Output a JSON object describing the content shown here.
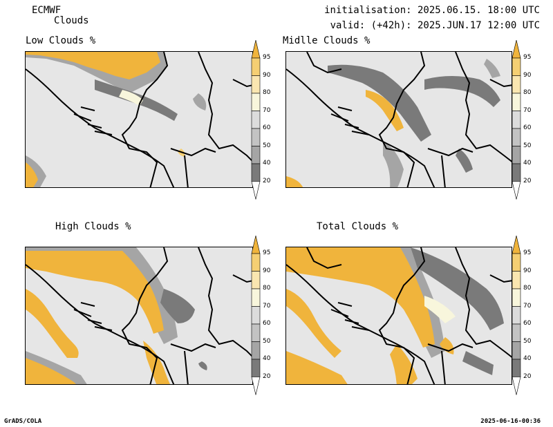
{
  "header": {
    "model": "ECMWF",
    "product": "Clouds",
    "initialisation": "initialisation: 2025.06.15. 18:00 UTC",
    "valid": "valid: (+42h): 2025.JUN.17 12:00 UTC"
  },
  "panels": {
    "low": {
      "title": "Low Clouds %"
    },
    "mid": {
      "title": "Midlle Clouds %"
    },
    "high": {
      "title": "High Clouds %"
    },
    "total": {
      "title": "Total Clouds %"
    }
  },
  "colorbar": {
    "levels": [
      "95",
      "90",
      "80",
      "70",
      "60",
      "50",
      "40",
      "20"
    ],
    "colors": {
      "c95": "#f0b43c",
      "c90": "#f5cf73",
      "c80": "#fae6b0",
      "c70": "#f8f6dc",
      "c60": "#dcdcdc",
      "c50": "#c3c3c3",
      "c40": "#a5a5a5",
      "c30": "#7a7a7a",
      "c20": "#5a5a5a",
      "below": "#ffffff"
    }
  },
  "footer": {
    "left": "GrADS/COLA",
    "right": "2025-06-16-00:36"
  }
}
